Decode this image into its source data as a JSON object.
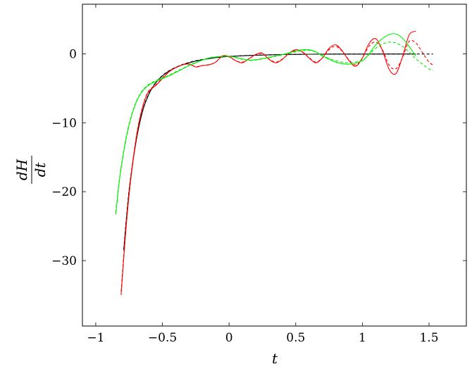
{
  "chart_data": {
    "type": "line",
    "title": "",
    "xlabel": "t",
    "ylabel_num": "dH",
    "ylabel_den": "dt",
    "xlim": [
      -1.1,
      1.78
    ],
    "ylim": [
      -39.5,
      7.2
    ],
    "xticks": [
      -1,
      -0.5,
      0,
      0.5,
      1,
      1.5
    ],
    "xtick_labels": [
      "−1",
      "−0.5",
      "0",
      "0.5",
      "1",
      "1.5"
    ],
    "yticks": [
      -30,
      -20,
      -10,
      0
    ],
    "ytick_labels": [
      "−30",
      "−20",
      "−10",
      "0"
    ],
    "grid": false,
    "series": [
      {
        "color": "#000000",
        "dash": "solid",
        "x": [
          -0.79,
          -0.75,
          -0.7,
          -0.65,
          -0.6,
          -0.55,
          -0.5,
          -0.45,
          -0.4,
          -0.35,
          -0.3,
          -0.25,
          -0.2,
          -0.15,
          -0.1,
          -0.05,
          0,
          0.1,
          0.2,
          0.3,
          0.4,
          0.5,
          0.6,
          0.8,
          1.0,
          1.2,
          1.4
        ],
        "y": [
          -28.5,
          -20,
          -13,
          -8.4,
          -5.8,
          -4.2,
          -3.2,
          -2.5,
          -2.0,
          -1.6,
          -1.3,
          -1.05,
          -0.85,
          -0.7,
          -0.55,
          -0.45,
          -0.38,
          -0.28,
          -0.2,
          -0.15,
          -0.11,
          -0.08,
          -0.06,
          -0.04,
          -0.03,
          -0.02,
          -0.02
        ]
      },
      {
        "color": "#000000",
        "dash": "dashed",
        "x": [
          -0.79,
          -0.75,
          -0.7,
          -0.65,
          -0.6,
          -0.55,
          -0.5,
          -0.45,
          -0.4,
          -0.35,
          -0.3,
          -0.25,
          -0.2,
          -0.15,
          -0.1,
          -0.05,
          0,
          0.1,
          0.2,
          0.3,
          0.4,
          0.5,
          0.6,
          0.8,
          1.0,
          1.2,
          1.4,
          1.53
        ],
        "y": [
          -28.3,
          -19.8,
          -12.9,
          -8.3,
          -5.7,
          -4.15,
          -3.15,
          -2.45,
          -1.95,
          -1.55,
          -1.25,
          -1.0,
          -0.82,
          -0.68,
          -0.53,
          -0.43,
          -0.36,
          -0.27,
          -0.19,
          -0.14,
          -0.1,
          -0.08,
          -0.06,
          -0.04,
          -0.03,
          -0.02,
          -0.02,
          -0.02
        ]
      },
      {
        "color": "#ff0000",
        "dash": "solid",
        "x": [
          -0.81,
          -0.78,
          -0.75,
          -0.72,
          -0.69,
          -0.66,
          -0.63,
          -0.6,
          -0.55,
          -0.5,
          -0.45,
          -0.4,
          -0.35,
          -0.3,
          -0.25,
          -0.2,
          -0.15,
          -0.1,
          -0.05,
          0,
          0.05,
          0.1,
          0.15,
          0.2,
          0.25,
          0.3,
          0.35,
          0.4,
          0.45,
          0.5,
          0.55,
          0.6,
          0.65,
          0.7,
          0.75,
          0.8,
          0.85,
          0.9,
          0.95,
          1.0,
          1.05,
          1.1,
          1.15,
          1.2,
          1.25,
          1.3,
          1.35,
          1.4
        ],
        "y": [
          -35,
          -27,
          -20.5,
          -15.5,
          -11.5,
          -8.6,
          -6.6,
          -5.4,
          -4.6,
          -3.6,
          -2.6,
          -2.0,
          -1.6,
          -1.5,
          -1.9,
          -1.7,
          -1.6,
          -1.2,
          -0.3,
          -0.4,
          -1.0,
          -1.3,
          -0.7,
          -0.1,
          0.1,
          -0.8,
          -1.3,
          -0.8,
          0.1,
          0.6,
          0.3,
          -0.6,
          -1.3,
          -0.6,
          0.8,
          1.3,
          0.4,
          -1.0,
          -1.8,
          -0.6,
          1.5,
          2.2,
          0.5,
          -2.2,
          -2.9,
          -0.5,
          2.7,
          3.3
        ]
      },
      {
        "color": "#ff0000",
        "dash": "dashed",
        "x": [
          -0.81,
          -0.78,
          -0.75,
          -0.72,
          -0.69,
          -0.66,
          -0.63,
          -0.6,
          -0.55,
          -0.5,
          -0.45,
          -0.4,
          -0.35,
          -0.3,
          -0.25,
          -0.2,
          -0.15,
          -0.1,
          -0.05,
          0,
          0.05,
          0.1,
          0.15,
          0.2,
          0.25,
          0.3,
          0.35,
          0.4,
          0.45,
          0.5,
          0.55,
          0.6,
          0.65,
          0.7,
          0.75,
          0.8,
          0.85,
          0.9,
          0.95,
          1.0,
          1.05,
          1.1,
          1.15,
          1.2,
          1.25,
          1.3,
          1.35,
          1.4,
          1.45,
          1.5,
          1.53
        ],
        "y": [
          -34.5,
          -26.6,
          -20.2,
          -15.3,
          -11.3,
          -8.5,
          -6.5,
          -5.3,
          -4.5,
          -3.5,
          -2.6,
          -2.0,
          -1.6,
          -1.5,
          -1.85,
          -1.7,
          -1.55,
          -1.2,
          -0.35,
          -0.45,
          -1.0,
          -1.2,
          -0.7,
          -0.15,
          0.05,
          -0.75,
          -1.2,
          -0.75,
          0.05,
          0.5,
          0.25,
          -0.55,
          -1.2,
          -0.6,
          0.6,
          1.1,
          0.35,
          -0.9,
          -1.6,
          -0.6,
          1.1,
          1.7,
          0.6,
          -1.6,
          -2.2,
          -0.6,
          1.8,
          1.6,
          0.2,
          -1.2,
          -1.6
        ]
      },
      {
        "color": "#00ee00",
        "dash": "solid",
        "x": [
          -0.85,
          -0.82,
          -0.79,
          -0.76,
          -0.73,
          -0.7,
          -0.67,
          -0.64,
          -0.6,
          -0.55,
          -0.5,
          -0.45,
          -0.4,
          -0.35,
          -0.3,
          -0.25,
          -0.2,
          -0.15,
          -0.1,
          -0.05,
          0,
          0.05,
          0.1,
          0.15,
          0.2,
          0.3,
          0.4,
          0.5,
          0.55,
          0.6,
          0.65,
          0.7,
          0.8,
          0.9,
          1.0,
          1.05,
          1.1,
          1.15,
          1.2,
          1.25,
          1.3,
          1.35,
          1.4
        ],
        "y": [
          -23.3,
          -18,
          -14.2,
          -11.2,
          -8.9,
          -7.2,
          -6.0,
          -5.2,
          -4.5,
          -4.0,
          -3.6,
          -3.2,
          -2.7,
          -2.2,
          -1.7,
          -1.3,
          -0.9,
          -0.6,
          -0.45,
          -0.35,
          -0.35,
          -0.5,
          -0.75,
          -0.9,
          -0.85,
          -0.5,
          -0.1,
          0.4,
          0.6,
          0.6,
          0.3,
          -0.3,
          -1.2,
          -1.5,
          -1.0,
          0.0,
          1.3,
          2.2,
          2.8,
          2.9,
          2.3,
          1.1,
          -0.3
        ]
      },
      {
        "color": "#00ee00",
        "dash": "dashed",
        "x": [
          -0.85,
          -0.82,
          -0.79,
          -0.76,
          -0.73,
          -0.7,
          -0.67,
          -0.64,
          -0.6,
          -0.55,
          -0.5,
          -0.45,
          -0.4,
          -0.35,
          -0.3,
          -0.25,
          -0.2,
          -0.15,
          -0.1,
          -0.05,
          0,
          0.05,
          0.1,
          0.15,
          0.2,
          0.3,
          0.4,
          0.5,
          0.55,
          0.6,
          0.65,
          0.7,
          0.8,
          0.9,
          1.0,
          1.05,
          1.1,
          1.15,
          1.2,
          1.25,
          1.3,
          1.35,
          1.4,
          1.45,
          1.5,
          1.53
        ],
        "y": [
          -23.0,
          -17.8,
          -14.0,
          -11.0,
          -8.8,
          -7.1,
          -5.9,
          -5.1,
          -4.4,
          -3.9,
          -3.5,
          -3.1,
          -2.6,
          -2.15,
          -1.65,
          -1.25,
          -0.9,
          -0.6,
          -0.45,
          -0.38,
          -0.38,
          -0.55,
          -0.8,
          -0.95,
          -0.9,
          -0.55,
          -0.15,
          0.3,
          0.45,
          0.5,
          0.25,
          -0.25,
          -1.0,
          -1.3,
          -0.9,
          -0.1,
          0.8,
          1.4,
          1.7,
          1.6,
          1.1,
          0.3,
          -0.7,
          -1.5,
          -2.2,
          -2.4
        ]
      }
    ]
  }
}
